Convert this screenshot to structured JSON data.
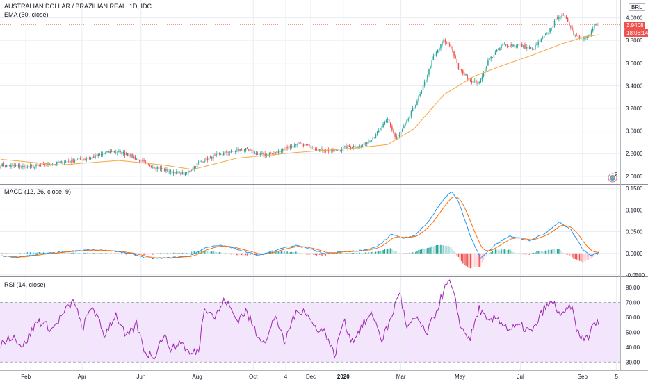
{
  "symbol_title": "AUSTRALIAN DOLLAR / BRAZILIAN REAL, 1D, IDC",
  "ema_legend": "EMA (50, close)",
  "macd_legend": "MACD (12, 26, close, 9)",
  "rsi_legend": "RSI (14, close)",
  "currency_button": "BRL",
  "price_tag": "3.9408",
  "countdown_tag": "18:06:14",
  "alert_badge_count": "2",
  "colors": {
    "up": "#26a69a",
    "down": "#ef5350",
    "ema": "#f7a53b",
    "macd": "#2196f3",
    "signal": "#ff6d00",
    "rsi": "#9c27b0",
    "rsi_band": "#f3e5fc",
    "grid": "#e9ecf2"
  },
  "chart_data": [
    {
      "type": "candlestick",
      "pane": "price",
      "y_ticks": [
        "2.6000",
        "2.8000",
        "3.0000",
        "3.2000",
        "3.4000",
        "3.6000",
        "3.8000",
        "4.0000"
      ],
      "ylim": [
        2.55,
        4.12
      ],
      "last_price": 3.9408,
      "price_anchors": [
        [
          0,
          2.7
        ],
        [
          20,
          2.68
        ],
        [
          40,
          2.72
        ],
        [
          60,
          2.76
        ],
        [
          75,
          2.82
        ],
        [
          85,
          2.8
        ],
        [
          100,
          2.7
        ],
        [
          115,
          2.64
        ],
        [
          125,
          2.62
        ],
        [
          135,
          2.73
        ],
        [
          150,
          2.8
        ],
        [
          165,
          2.84
        ],
        [
          175,
          2.79
        ],
        [
          185,
          2.8
        ],
        [
          195,
          2.86
        ],
        [
          205,
          2.88
        ],
        [
          215,
          2.84
        ],
        [
          225,
          2.82
        ],
        [
          235,
          2.86
        ],
        [
          245,
          2.87
        ],
        [
          255,
          2.98
        ],
        [
          262,
          3.1
        ],
        [
          268,
          2.92
        ],
        [
          275,
          3.08
        ],
        [
          285,
          3.35
        ],
        [
          293,
          3.65
        ],
        [
          300,
          3.8
        ],
        [
          305,
          3.74
        ],
        [
          310,
          3.55
        ],
        [
          318,
          3.45
        ],
        [
          324,
          3.42
        ],
        [
          330,
          3.62
        ],
        [
          340,
          3.76
        ],
        [
          350,
          3.76
        ],
        [
          360,
          3.72
        ],
        [
          370,
          3.86
        ],
        [
          378,
          4.02
        ],
        [
          383,
          4.0
        ],
        [
          388,
          3.86
        ],
        [
          394,
          3.82
        ],
        [
          398,
          3.83
        ],
        [
          402,
          3.93
        ],
        [
          405,
          3.94
        ]
      ],
      "ema_anchors": [
        [
          0,
          2.75
        ],
        [
          40,
          2.7
        ],
        [
          80,
          2.74
        ],
        [
          110,
          2.7
        ],
        [
          130,
          2.66
        ],
        [
          160,
          2.76
        ],
        [
          200,
          2.81
        ],
        [
          240,
          2.85
        ],
        [
          262,
          2.88
        ],
        [
          280,
          3.02
        ],
        [
          300,
          3.32
        ],
        [
          320,
          3.48
        ],
        [
          340,
          3.58
        ],
        [
          360,
          3.67
        ],
        [
          380,
          3.77
        ],
        [
          395,
          3.83
        ],
        [
          405,
          3.85
        ]
      ]
    },
    {
      "type": "line+bar",
      "pane": "macd",
      "y_ticks": [
        "0.1500",
        "0.1000",
        "0.0500",
        "0.0000",
        "-0.0500"
      ],
      "ylim": [
        -0.05,
        0.155
      ],
      "series": [
        {
          "name": "MACD"
        },
        {
          "name": "Signal"
        },
        {
          "name": "Histogram"
        }
      ]
    },
    {
      "type": "line",
      "pane": "rsi",
      "y_ticks": [
        "80.00",
        "70.00",
        "60.00",
        "50.00",
        "40.00",
        "30.00"
      ],
      "ylim": [
        25,
        86
      ],
      "bands": [
        30,
        70
      ]
    }
  ],
  "x_axis_labels": [
    {
      "label": "Feb",
      "bar": 17
    },
    {
      "label": "Apr",
      "bar": 55
    },
    {
      "label": "Jun",
      "bar": 95
    },
    {
      "label": "Aug",
      "bar": 133
    },
    {
      "label": "Oct",
      "bar": 171
    },
    {
      "label": "4",
      "bar": 193
    },
    {
      "label": "Dec",
      "bar": 210
    },
    {
      "label": "2020",
      "bar": 232
    },
    {
      "label": "Mar",
      "bar": 271
    },
    {
      "label": "May",
      "bar": 311
    },
    {
      "label": "Jul",
      "bar": 352
    },
    {
      "label": "Sep",
      "bar": 394
    },
    {
      "label": "5",
      "bar": 417
    }
  ]
}
